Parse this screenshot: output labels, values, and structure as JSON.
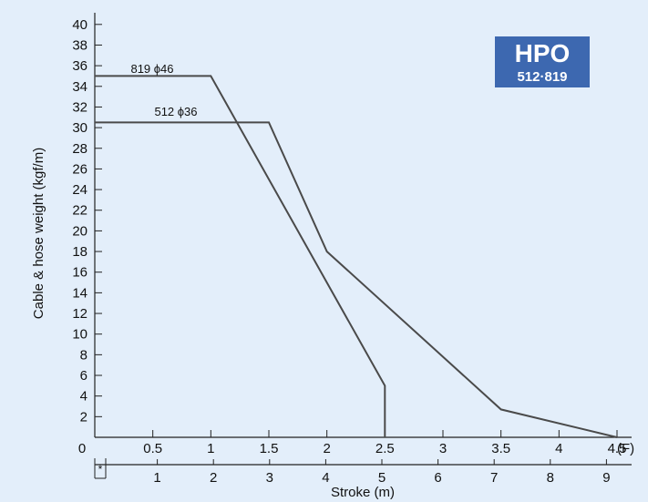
{
  "chart_data": {
    "type": "line",
    "title": "",
    "ylabel": "Cable & hose weight (kgf/m)",
    "xlabel": "Stroke (m)",
    "x_top_unit": "(F)",
    "ylim": [
      0,
      41
    ],
    "y_ticks": [
      2,
      4,
      6,
      8,
      10,
      12,
      14,
      16,
      18,
      20,
      22,
      24,
      26,
      28,
      30,
      32,
      34,
      36,
      38,
      40
    ],
    "origin_label": "0",
    "x_top_ticks": [
      "0.5",
      "1",
      "1.5",
      "2",
      "2.5",
      "3",
      "3.5",
      "4",
      "4.5"
    ],
    "x_top_values": [
      0.5,
      1,
      1.5,
      2,
      2.5,
      3,
      3.5,
      4,
      4.5
    ],
    "xlim_top": [
      0,
      4.5
    ],
    "x_bottom_ticks": [
      "1",
      "2",
      "3",
      "4",
      "5",
      "6",
      "7",
      "8",
      "9"
    ],
    "x_bottom_values": [
      1,
      2,
      3,
      4,
      5,
      6,
      7,
      8,
      9
    ],
    "xlim_bottom": [
      0,
      9.2
    ],
    "bottom_axis_note": "*",
    "series": [
      {
        "name": "819 ϕ46",
        "x_axis": "F",
        "points": [
          [
            0,
            35
          ],
          [
            1.0,
            35
          ],
          [
            2.5,
            5
          ],
          [
            2.5,
            0
          ]
        ]
      },
      {
        "name": "512 ϕ36",
        "x_axis": "F",
        "points": [
          [
            0,
            30.5
          ],
          [
            1.5,
            30.5
          ],
          [
            2.0,
            18
          ],
          [
            3.5,
            2.7
          ],
          [
            4.5,
            0
          ]
        ]
      }
    ],
    "badge": {
      "title": "HPO",
      "subtitle": "512·819",
      "color": "#3d68b0"
    },
    "colors": {
      "background": "#e3eefa",
      "line": "#4a4a4a"
    },
    "grid": false
  }
}
